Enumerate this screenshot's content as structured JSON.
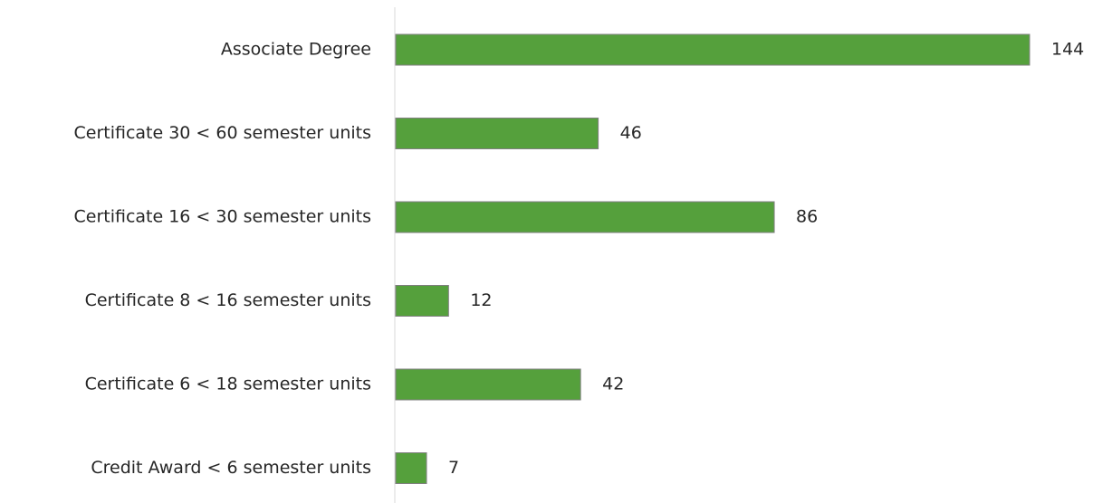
{
  "chart_data": {
    "type": "hbar",
    "categories": [
      "Associate Degree",
      "Certificate 30 < 60 semester units",
      "Certificate 16 < 30 semester units",
      "Certificate 8 < 16 semester units",
      "Certificate 6 < 18 semester units",
      "Credit Award < 6 semester units"
    ],
    "values": [
      144,
      46,
      86,
      12,
      42,
      7
    ],
    "color": "#55a03c"
  }
}
